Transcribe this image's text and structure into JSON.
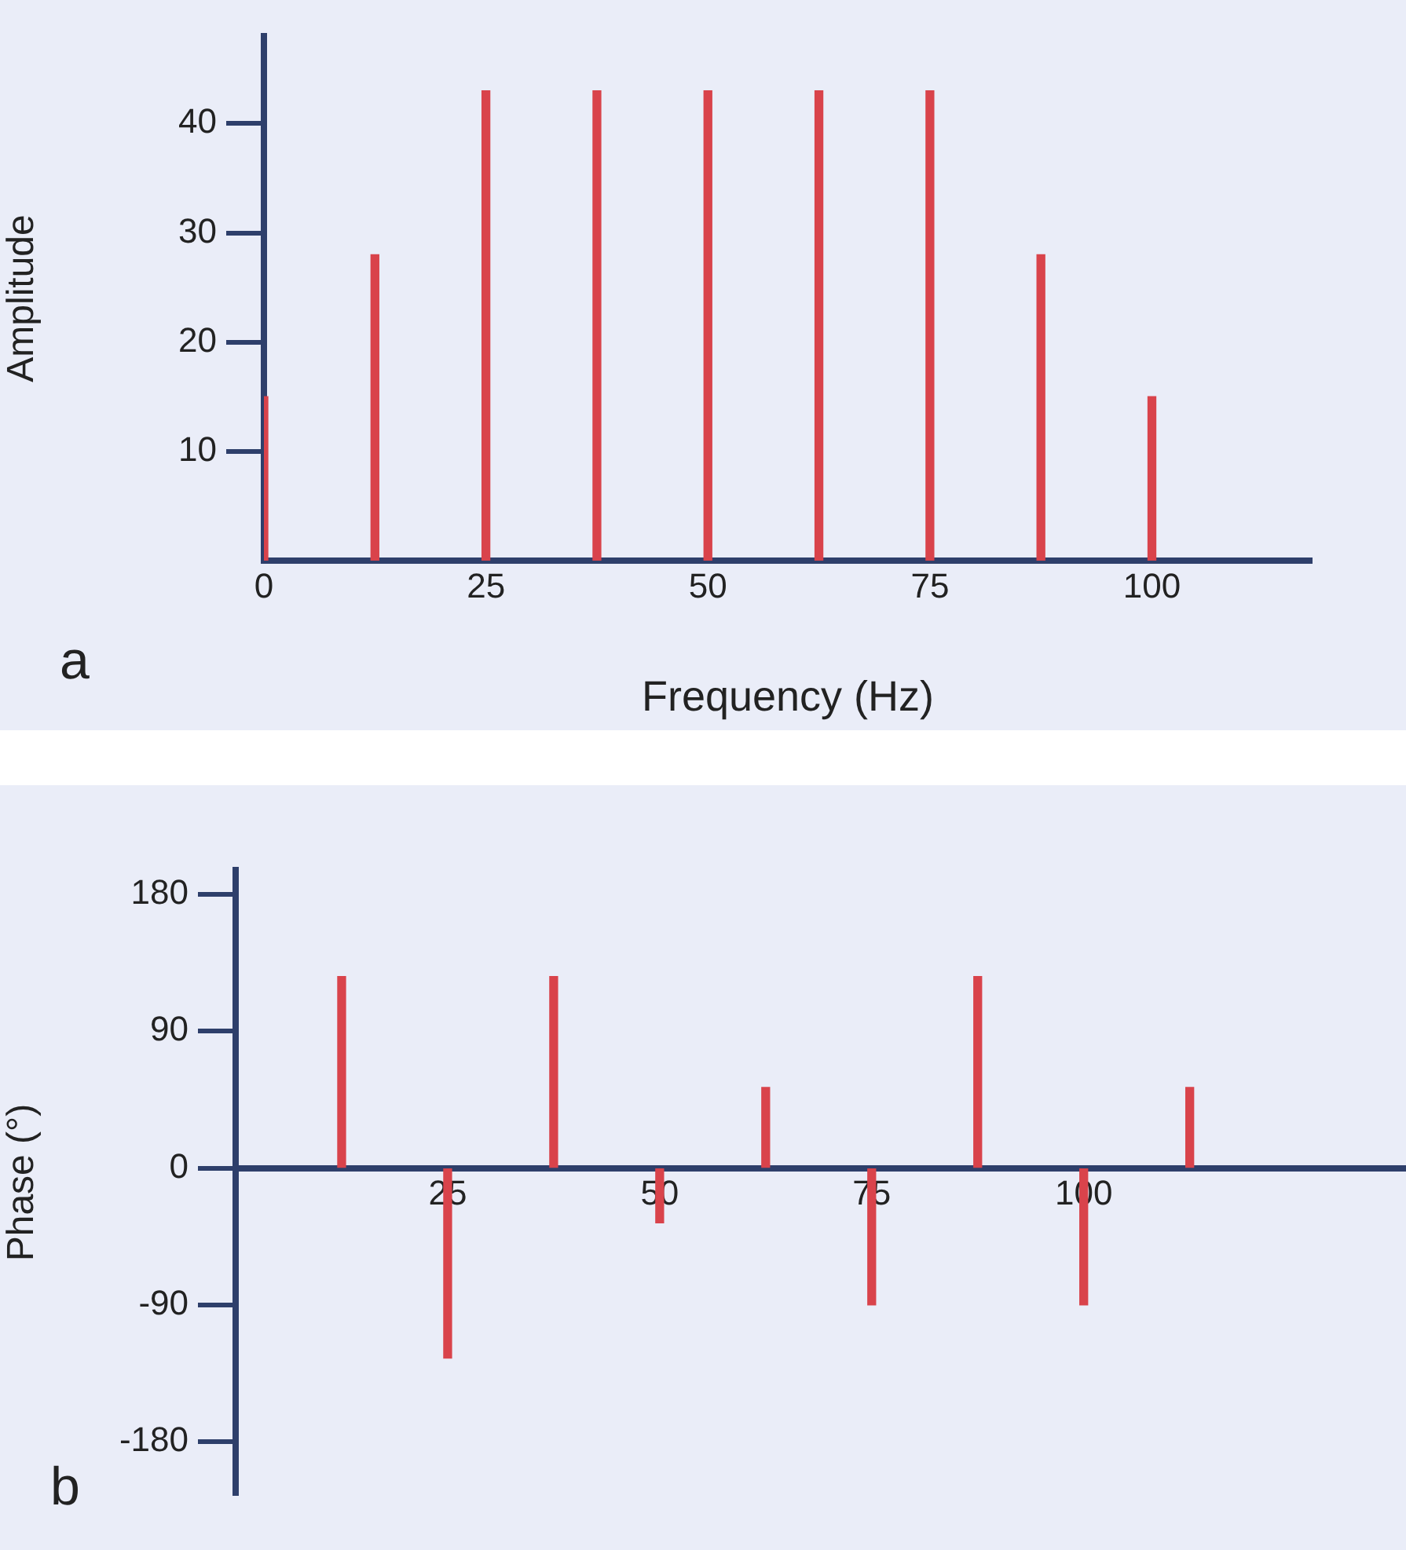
{
  "chart_data": [
    {
      "type": "bar",
      "xlabel": "Frequency (Hz)",
      "ylabel": "Amplitude",
      "annotations": [
        "a"
      ],
      "x": [
        0,
        12.5,
        25,
        37.5,
        50,
        62.5,
        75,
        87.5,
        100
      ],
      "values": [
        15,
        28,
        43,
        43,
        43,
        43,
        43,
        28,
        15
      ],
      "color": "#d9434b",
      "xlim": [
        0,
        118
      ],
      "xticks": [
        0,
        25,
        50,
        75,
        100
      ],
      "ylim": [
        0,
        48
      ],
      "yticks": [
        10,
        20,
        30,
        40
      ]
    },
    {
      "type": "bar",
      "ylabel": "Phase (°)",
      "annotations": [
        "b"
      ],
      "x": [
        12.5,
        25,
        37.5,
        50,
        62.5,
        75,
        87.5,
        100,
        112.5
      ],
      "values": [
        126,
        -125,
        126,
        -36,
        53,
        -90,
        126,
        -90,
        53
      ],
      "color": "#d9434b",
      "xlim": [
        0,
        138
      ],
      "xticks": [
        25,
        50,
        75,
        100
      ],
      "ylim": [
        -215,
        196
      ],
      "yticks": [
        180,
        90,
        0,
        -90,
        -180
      ]
    }
  ]
}
